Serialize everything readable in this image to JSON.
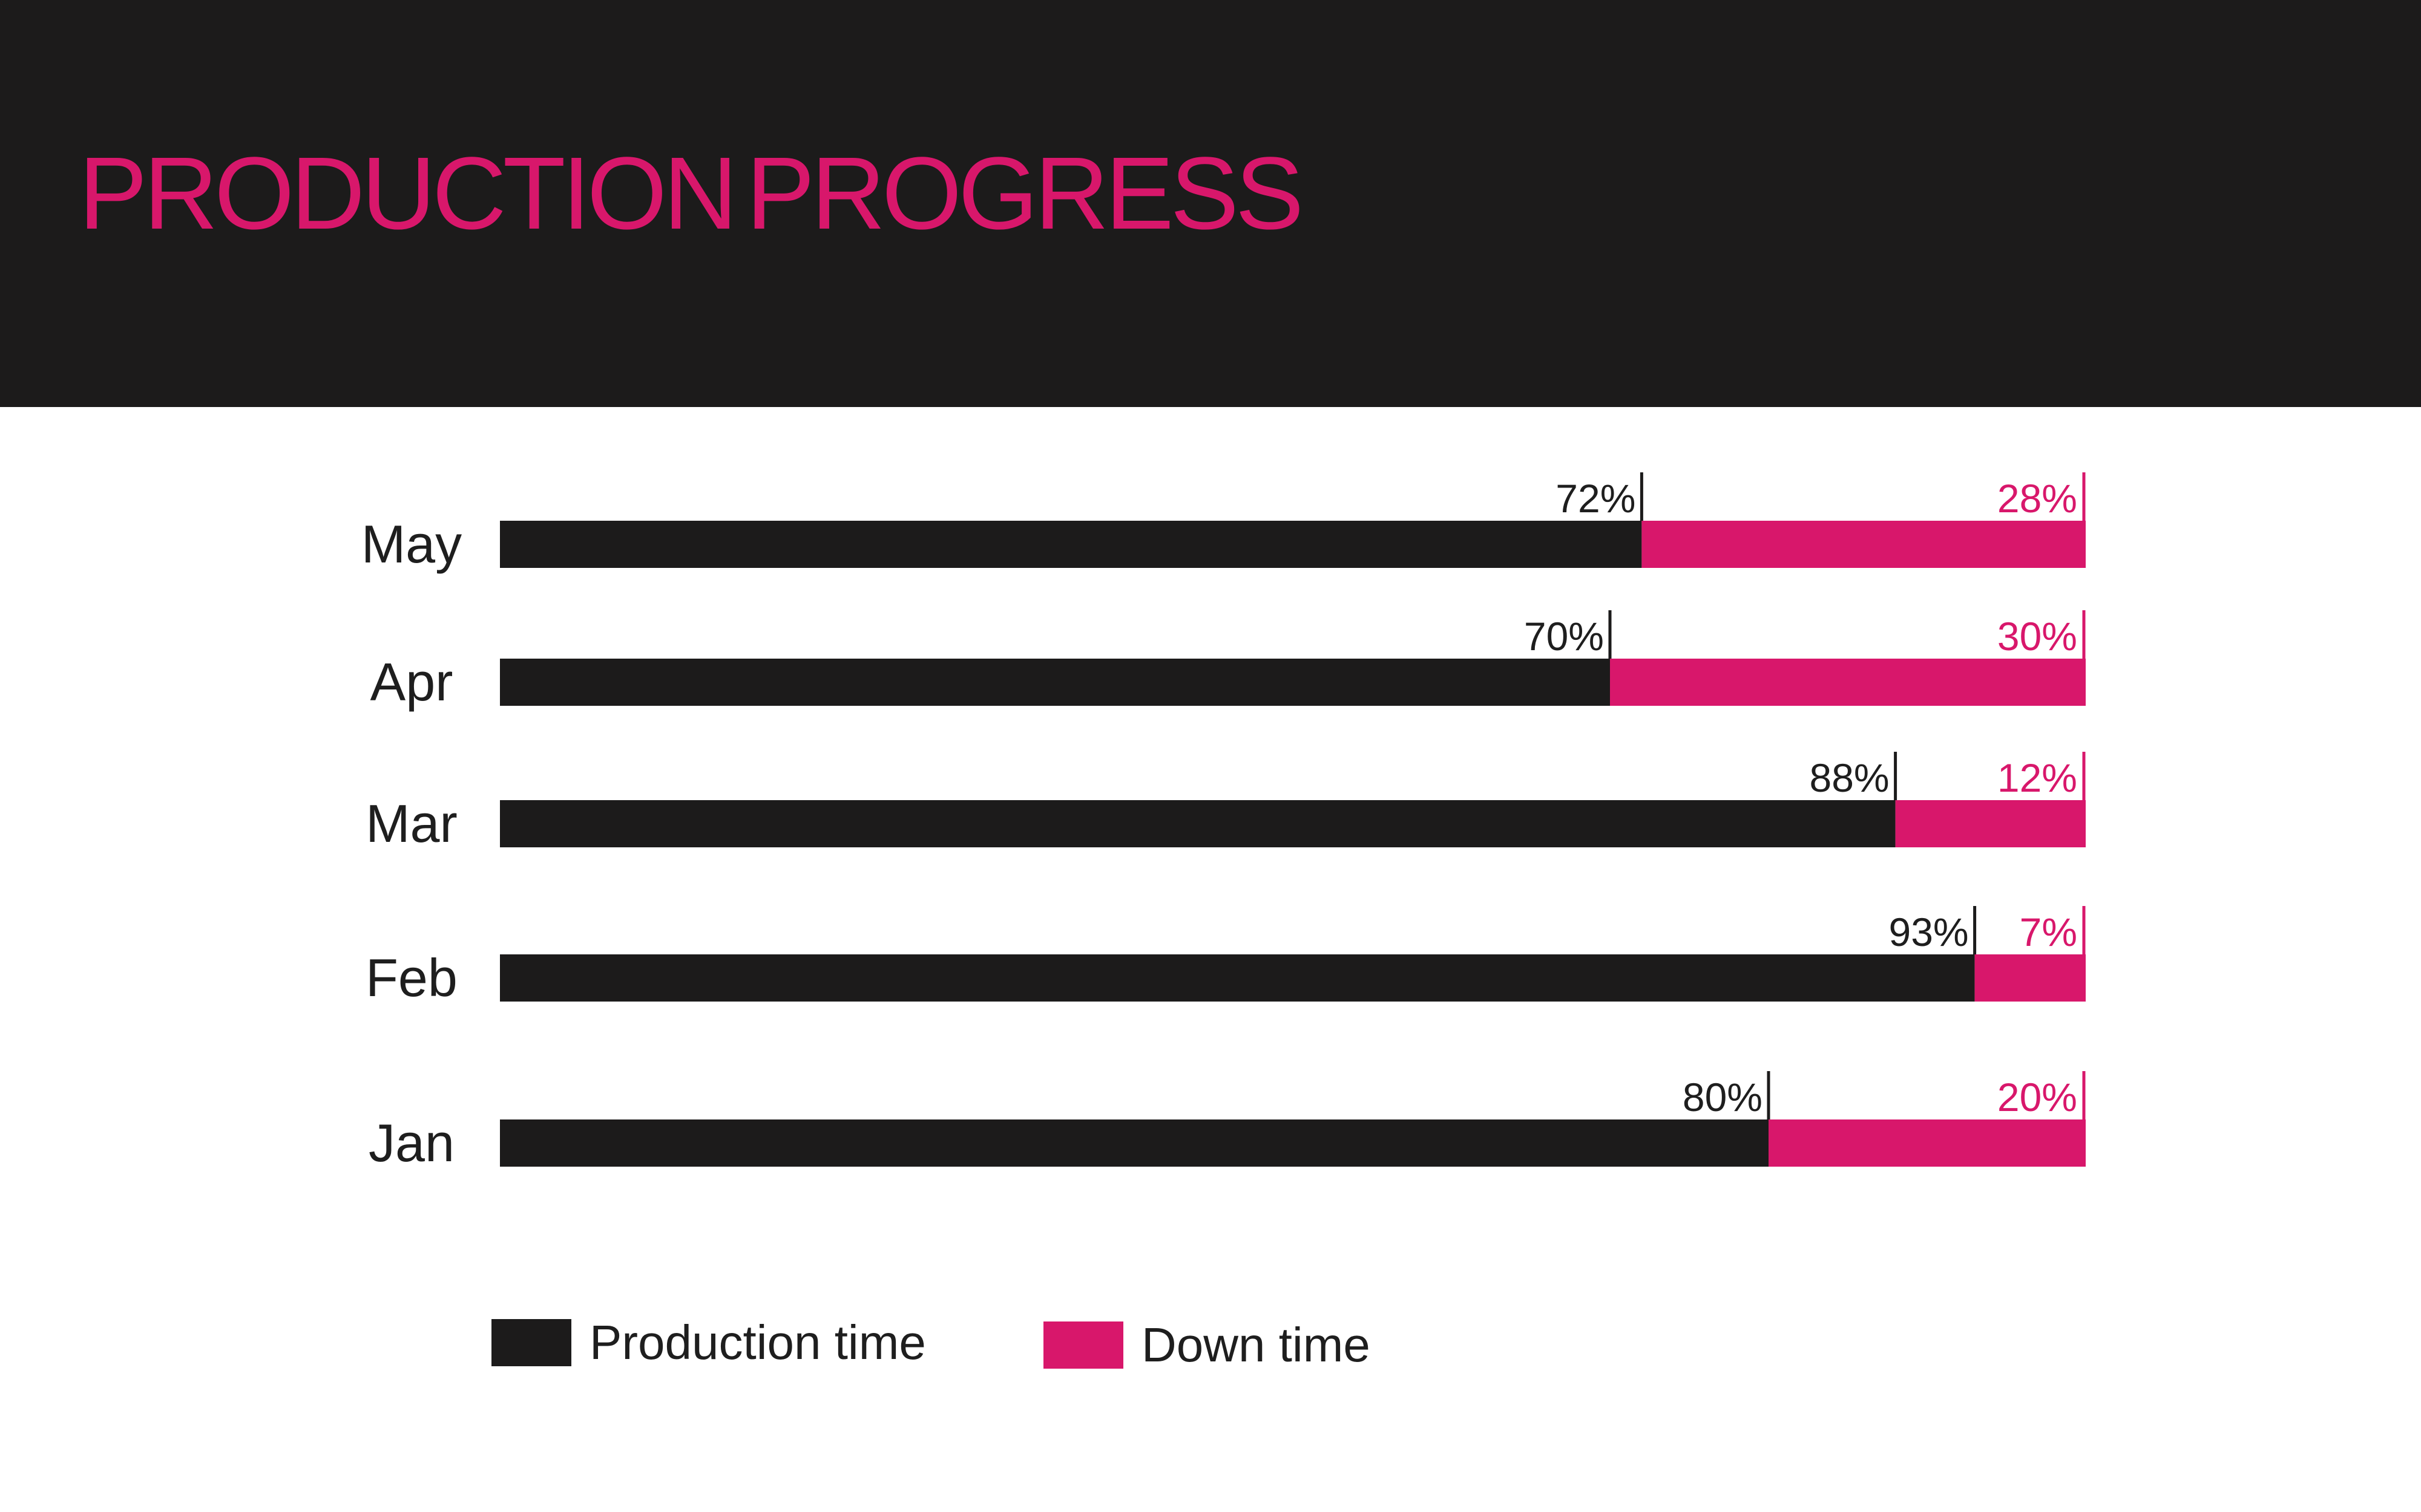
{
  "header": {
    "title_light": "PRODUCTION",
    "title_bold": "PROGRESS"
  },
  "colors": {
    "header_bg": "#1c1b1b",
    "production": "#1c1b1b",
    "down": "#d8176b",
    "title": "#d8176b"
  },
  "legend": {
    "production_label": "Production time",
    "down_label": "Down time"
  },
  "chart_data": {
    "type": "bar",
    "orientation": "horizontal",
    "stacked": true,
    "categories": [
      "May",
      "Apr",
      "Mar",
      "Feb",
      "Jan"
    ],
    "series": [
      {
        "name": "Production time",
        "values": [
          72,
          70,
          88,
          93,
          80
        ],
        "labels": [
          "72%",
          "70%",
          "88%",
          "93%",
          "80%"
        ]
      },
      {
        "name": "Down time",
        "values": [
          28,
          30,
          12,
          7,
          20
        ],
        "labels": [
          "28%",
          "30%",
          "12%",
          "7%",
          "20%"
        ]
      }
    ],
    "xlim": [
      0,
      100
    ],
    "grid": false,
    "legend_position": "bottom-left"
  }
}
